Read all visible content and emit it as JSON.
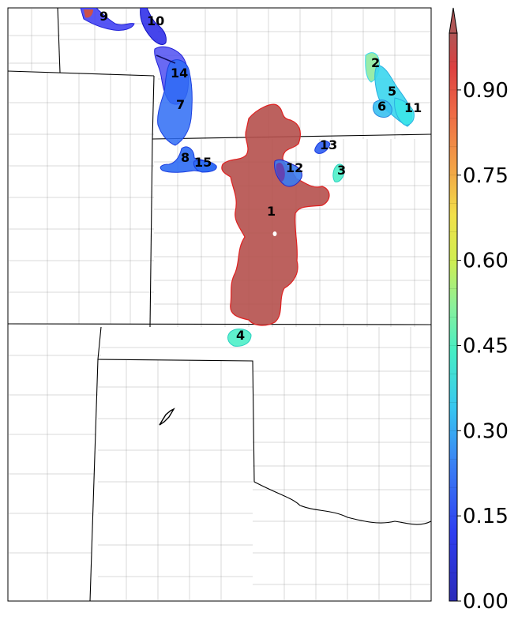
{
  "map": {
    "regions": [
      {
        "id": "1",
        "label": "1",
        "value": 0.97,
        "color": "#b5504c"
      },
      {
        "id": "2",
        "label": "2",
        "value": 0.46,
        "color": "#8eeaa0"
      },
      {
        "id": "3",
        "label": "3",
        "value": 0.42,
        "color": "#4ef0c8"
      },
      {
        "id": "4",
        "label": "4",
        "value": 0.42,
        "color": "#4ef0c8"
      },
      {
        "id": "5",
        "label": "5",
        "value": 0.36,
        "color": "#3ad6ee"
      },
      {
        "id": "6",
        "label": "6",
        "value": 0.32,
        "color": "#38c0f0"
      },
      {
        "id": "7",
        "label": "7",
        "value": 0.22,
        "color": "#2e6cf4"
      },
      {
        "id": "8",
        "label": "8",
        "value": 0.22,
        "color": "#2e6cf4"
      },
      {
        "id": "9",
        "label": "9",
        "value": 0.12,
        "color": "#3838f2"
      },
      {
        "id": "10",
        "label": "10",
        "value": 0.1,
        "color": "#2424e8"
      },
      {
        "id": "11",
        "label": "11",
        "value": 0.38,
        "color": "#3ce4e8"
      },
      {
        "id": "12",
        "label": "12",
        "value": 0.24,
        "color": "#3a7cf0"
      },
      {
        "id": "13",
        "label": "13",
        "value": 0.2,
        "color": "#2e5ef2"
      },
      {
        "id": "14",
        "label": "14",
        "value": 0.12,
        "color": "#4444f0"
      },
      {
        "id": "15",
        "label": "15",
        "value": 0.22,
        "color": "#2e6cf4"
      }
    ]
  },
  "colorbar": {
    "min": 0.0,
    "max": 1.0,
    "ticks": [
      "0.00",
      "0.15",
      "0.30",
      "0.45",
      "0.60",
      "0.75",
      "0.90"
    ],
    "tick_values": [
      0.0,
      0.15,
      0.3,
      0.45,
      0.6,
      0.75,
      0.9
    ],
    "colors": [
      "#2b2bd6",
      "#3355ee",
      "#3a9af0",
      "#40e0e8",
      "#70f0a0",
      "#d4ee48",
      "#f4c040",
      "#f07840",
      "#e03838",
      "#b05050"
    ]
  }
}
